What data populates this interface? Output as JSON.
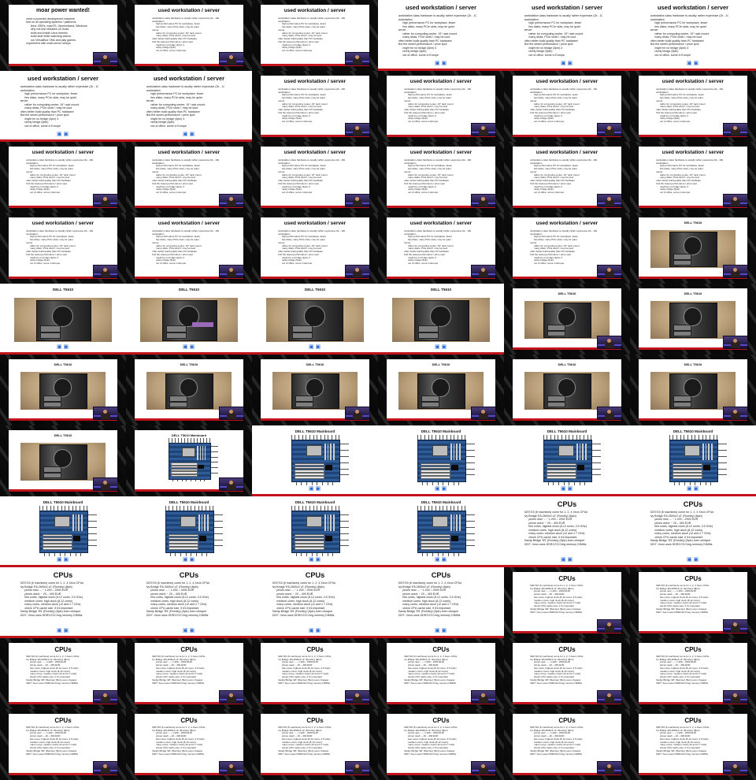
{
  "sheet": {
    "columns": 6,
    "rows": 11,
    "total_thumbnails": 66
  },
  "slides": {
    "moar": {
      "title": "moar power wanted!",
      "bullets": [
        "need a powerful development machine",
        "test on all operating systems / platforms",
        "linux, BSDs, macOS, OpenIndiana, Windows",
        "why not test releases on those",
        "build and install Linux kernels",
        "build stuff while watching videos",
        "run VirtualBox VMs and play games",
        "experiment with multi-server setups"
      ]
    },
    "workstation": {
      "title": "used workstation / server",
      "bullets": [
        "workstation class hardware is usually rather expensive (2k - 10k EUR) – except when you buy refurbished!",
        "workstation",
        "high performance PC for workplace, fewer",
        "few disks, many PCIe slots, may be quiet",
        "server",
        "rather for computing center, 19\" rack mount",
        "many disks, PCIe slots?, may be loud",
        "often better build quality than PC hardware",
        "find the sweet performance / price spot",
        "might be no bridge (4pin) 4",
        "rarely bridge (5pin)",
        "out of office, some in Europe"
      ]
    },
    "t5610": {
      "title": "DELL T5610"
    },
    "mainboard": {
      "title": "DELL T5610 Mainboard"
    },
    "cpus": {
      "title": "CPUs",
      "bullets": [
        "5207/15 (6 machines) come for 1, 2, 4 Xeon CPUs",
        "Ivy Bridge 'E5-2600v2 v2' (Romley) (8pin)",
        "prices new: – ~ 1.200 – 2000 EUR",
        "prices used: ~ 20 – 400 EUR",
        "few cores, highest clock (8-12 cores, 3.5 GHz)",
        "medium cores, high clock (8-12 cores)",
        "many cores, medium clock (12 and 2.7 GHz)",
        "check CPU cache size, if it's important",
        "Sandy Bridge 'E5' (Romley) (5pin) even cheaper",
        "5207: Xeon uses DDR3 ECC/reg memory DIMMs"
      ]
    }
  },
  "colors": {
    "footer_red": "#c0131b",
    "page_marker_blue": "#2b6cd4",
    "webcam_stage": "#4a3b78"
  },
  "icons": {
    "page_marker": "page-marker-icon",
    "webcam": "presenter-webcam"
  },
  "page_marker_glyph": "▣ ▣"
}
